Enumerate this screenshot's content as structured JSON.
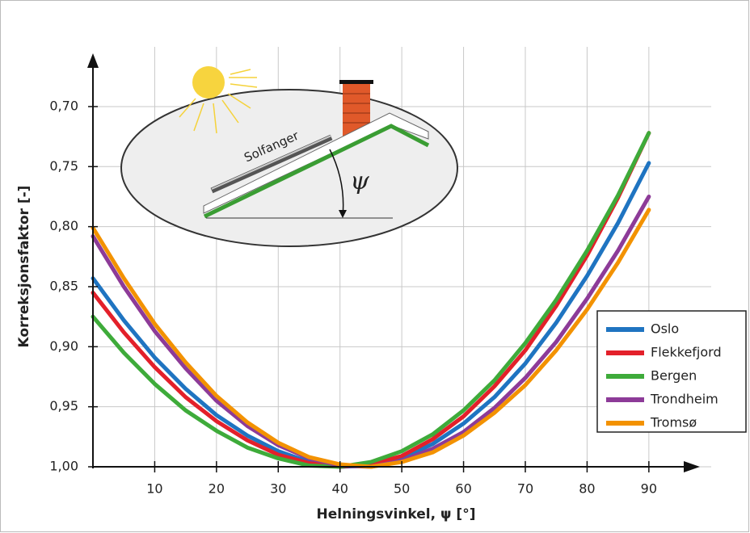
{
  "chart_data": {
    "type": "line",
    "x_label": "Helningsvinkel, ψ   [°]",
    "y_label": "Korreksjonsfaktor [-]",
    "illustration_label": "Solfanger",
    "illustration_symbol": "ψ",
    "x": [
      0,
      5,
      10,
      15,
      20,
      25,
      30,
      35,
      40,
      45,
      50,
      55,
      60,
      65,
      70,
      75,
      80,
      85,
      90
    ],
    "series": [
      {
        "name": "Oslo",
        "color": "#1f74c1",
        "values": [
          0.843,
          0.878,
          0.909,
          0.935,
          0.957,
          0.974,
          0.987,
          0.996,
          1.0,
          0.999,
          0.993,
          0.981,
          0.964,
          0.942,
          0.914,
          0.88,
          0.841,
          0.797,
          0.747
        ]
      },
      {
        "name": "Flekkefjord",
        "color": "#e3202a",
        "values": [
          0.855,
          0.888,
          0.917,
          0.942,
          0.962,
          0.978,
          0.99,
          0.997,
          1.0,
          0.998,
          0.991,
          0.977,
          0.958,
          0.933,
          0.903,
          0.866,
          0.824,
          0.776,
          0.722
        ]
      },
      {
        "name": "Bergen",
        "color": "#3eab3a",
        "values": [
          0.875,
          0.905,
          0.931,
          0.953,
          0.97,
          0.984,
          0.993,
          0.999,
          1.0,
          0.996,
          0.987,
          0.973,
          0.953,
          0.928,
          0.897,
          0.861,
          0.82,
          0.774,
          0.722
        ]
      },
      {
        "name": "Trondheim",
        "color": "#8d3b98",
        "values": [
          0.808,
          0.85,
          0.887,
          0.918,
          0.945,
          0.966,
          0.982,
          0.993,
          0.999,
          1.0,
          0.995,
          0.985,
          0.971,
          0.951,
          0.926,
          0.896,
          0.86,
          0.82,
          0.775
        ]
      },
      {
        "name": "Tromsø",
        "color": "#f39200",
        "values": [
          0.801,
          0.843,
          0.881,
          0.913,
          0.941,
          0.963,
          0.98,
          0.992,
          0.998,
          1.0,
          0.996,
          0.988,
          0.974,
          0.955,
          0.932,
          0.903,
          0.869,
          0.83,
          0.786
        ]
      }
    ],
    "xlim": [
      0,
      98
    ],
    "ylim": [
      1.0,
      0.66
    ],
    "xticks": [
      10,
      20,
      30,
      40,
      50,
      60,
      70,
      80,
      90
    ],
    "yticks": [
      {
        "value": 1.0,
        "label": "1,00"
      },
      {
        "value": 0.95,
        "label": "0,95"
      },
      {
        "value": 0.9,
        "label": "0,90"
      },
      {
        "value": 0.85,
        "label": "0,85"
      },
      {
        "value": 0.8,
        "label": "0,80"
      },
      {
        "value": 0.75,
        "label": "0,75"
      },
      {
        "value": 0.7,
        "label": "0,70"
      }
    ],
    "grid": true,
    "legend": "right"
  }
}
